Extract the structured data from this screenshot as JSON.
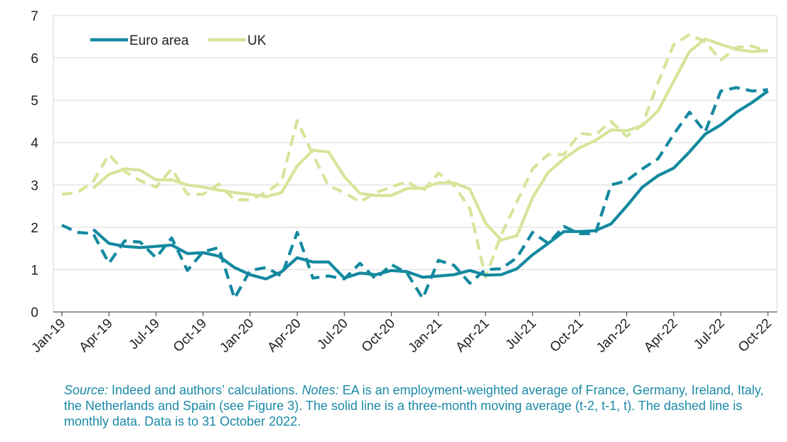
{
  "chart_data": {
    "type": "line",
    "x_tick_labels": [
      "Jan-19",
      "Apr-19",
      "Jul-19",
      "Oct-19",
      "Jan-20",
      "Apr-20",
      "Jul-20",
      "Oct-20",
      "Jan-21",
      "Apr-21",
      "Jul-21",
      "Oct-21",
      "Jan-22",
      "Apr-22",
      "Jul-22",
      "Oct-22"
    ],
    "x_months": [
      "Jan-19",
      "Feb-19",
      "Mar-19",
      "Apr-19",
      "May-19",
      "Jun-19",
      "Jul-19",
      "Aug-19",
      "Sep-19",
      "Oct-19",
      "Nov-19",
      "Dec-19",
      "Jan-20",
      "Feb-20",
      "Mar-20",
      "Apr-20",
      "May-20",
      "Jun-20",
      "Jul-20",
      "Aug-20",
      "Sep-20",
      "Oct-20",
      "Nov-20",
      "Dec-20",
      "Jan-21",
      "Feb-21",
      "Mar-21",
      "Apr-21",
      "May-21",
      "Jun-21",
      "Jul-21",
      "Aug-21",
      "Sep-21",
      "Oct-21",
      "Nov-21",
      "Dec-21",
      "Jan-22",
      "Feb-22",
      "Mar-22",
      "Apr-22",
      "May-22",
      "Jun-22",
      "Jul-22",
      "Aug-22",
      "Sep-22",
      "Oct-22"
    ],
    "ylim": [
      0,
      7
    ],
    "y_ticks": [
      0,
      1,
      2,
      3,
      4,
      5,
      6,
      7
    ],
    "grid": true,
    "legend_position": "top-left",
    "colors": {
      "euro": "#13899f",
      "uk": "#d5e59a"
    },
    "series": [
      {
        "name": "Euro area",
        "style": "solid",
        "color": "#13899f",
        "values": [
          null,
          null,
          1.95,
          1.62,
          1.55,
          1.52,
          1.55,
          1.58,
          1.38,
          1.4,
          1.32,
          1.05,
          0.88,
          0.78,
          0.95,
          1.28,
          1.18,
          1.18,
          0.8,
          0.92,
          0.88,
          0.98,
          0.95,
          0.82,
          0.85,
          0.88,
          0.98,
          0.87,
          0.88,
          1.02,
          1.35,
          1.62,
          1.9,
          1.9,
          1.92,
          2.08,
          2.5,
          2.95,
          3.22,
          3.4,
          3.78,
          4.2,
          4.42,
          4.72,
          4.95,
          5.22
        ]
      },
      {
        "name": "Euro area",
        "style": "dashed",
        "color": "#13899f",
        "values": [
          2.05,
          1.88,
          1.85,
          1.15,
          1.68,
          1.65,
          1.28,
          1.75,
          0.98,
          1.42,
          1.52,
          0.32,
          0.98,
          1.05,
          0.85,
          1.88,
          0.8,
          0.85,
          0.78,
          1.15,
          0.78,
          1.12,
          0.92,
          0.32,
          1.22,
          1.1,
          0.68,
          1.0,
          1.02,
          1.28,
          1.88,
          1.62,
          2.02,
          1.85,
          1.85,
          3.0,
          3.1,
          3.38,
          3.62,
          4.2,
          4.72,
          4.25,
          5.22,
          5.3,
          5.22,
          5.25
        ]
      },
      {
        "name": "UK",
        "style": "solid",
        "color": "#d5e59a",
        "values": [
          null,
          null,
          2.92,
          3.25,
          3.38,
          3.35,
          3.12,
          3.12,
          3.0,
          2.95,
          2.88,
          2.82,
          2.78,
          2.72,
          2.82,
          3.45,
          3.82,
          3.78,
          3.2,
          2.8,
          2.75,
          2.75,
          2.92,
          2.92,
          3.05,
          3.05,
          2.9,
          2.1,
          1.7,
          1.8,
          2.7,
          3.3,
          3.62,
          3.88,
          4.05,
          4.3,
          4.28,
          4.4,
          4.75,
          5.45,
          6.15,
          6.45,
          6.32,
          6.2,
          6.15,
          6.18
        ]
      },
      {
        "name": "UK",
        "style": "dashed",
        "color": "#d5e59a",
        "values": [
          2.78,
          2.82,
          3.08,
          3.72,
          3.32,
          3.1,
          2.95,
          3.38,
          2.78,
          2.78,
          3.02,
          2.65,
          2.65,
          2.82,
          3.08,
          4.52,
          3.72,
          2.98,
          2.82,
          2.6,
          2.82,
          2.95,
          3.08,
          2.85,
          3.28,
          2.98,
          2.45,
          0.82,
          1.82,
          2.6,
          3.38,
          3.72,
          3.72,
          4.22,
          4.18,
          4.5,
          4.15,
          4.42,
          5.42,
          6.32,
          6.55,
          6.38,
          5.95,
          6.25,
          6.28,
          6.15
        ]
      }
    ]
  },
  "legend": {
    "euro_label": "Euro area",
    "uk_label": "UK"
  },
  "footnote": {
    "source_label": "Source:",
    "source_text": " Indeed and authors’ calculations. ",
    "notes_label": "Notes:",
    "notes_text": " EA is an employment-weighted average of France, Germany, Ireland, Italy, the Netherlands and Spain (see Figure 3). The solid line is a three-month moving average (t-2, t-1, t). The dashed line is monthly data. Data is to 31 October 2022."
  }
}
